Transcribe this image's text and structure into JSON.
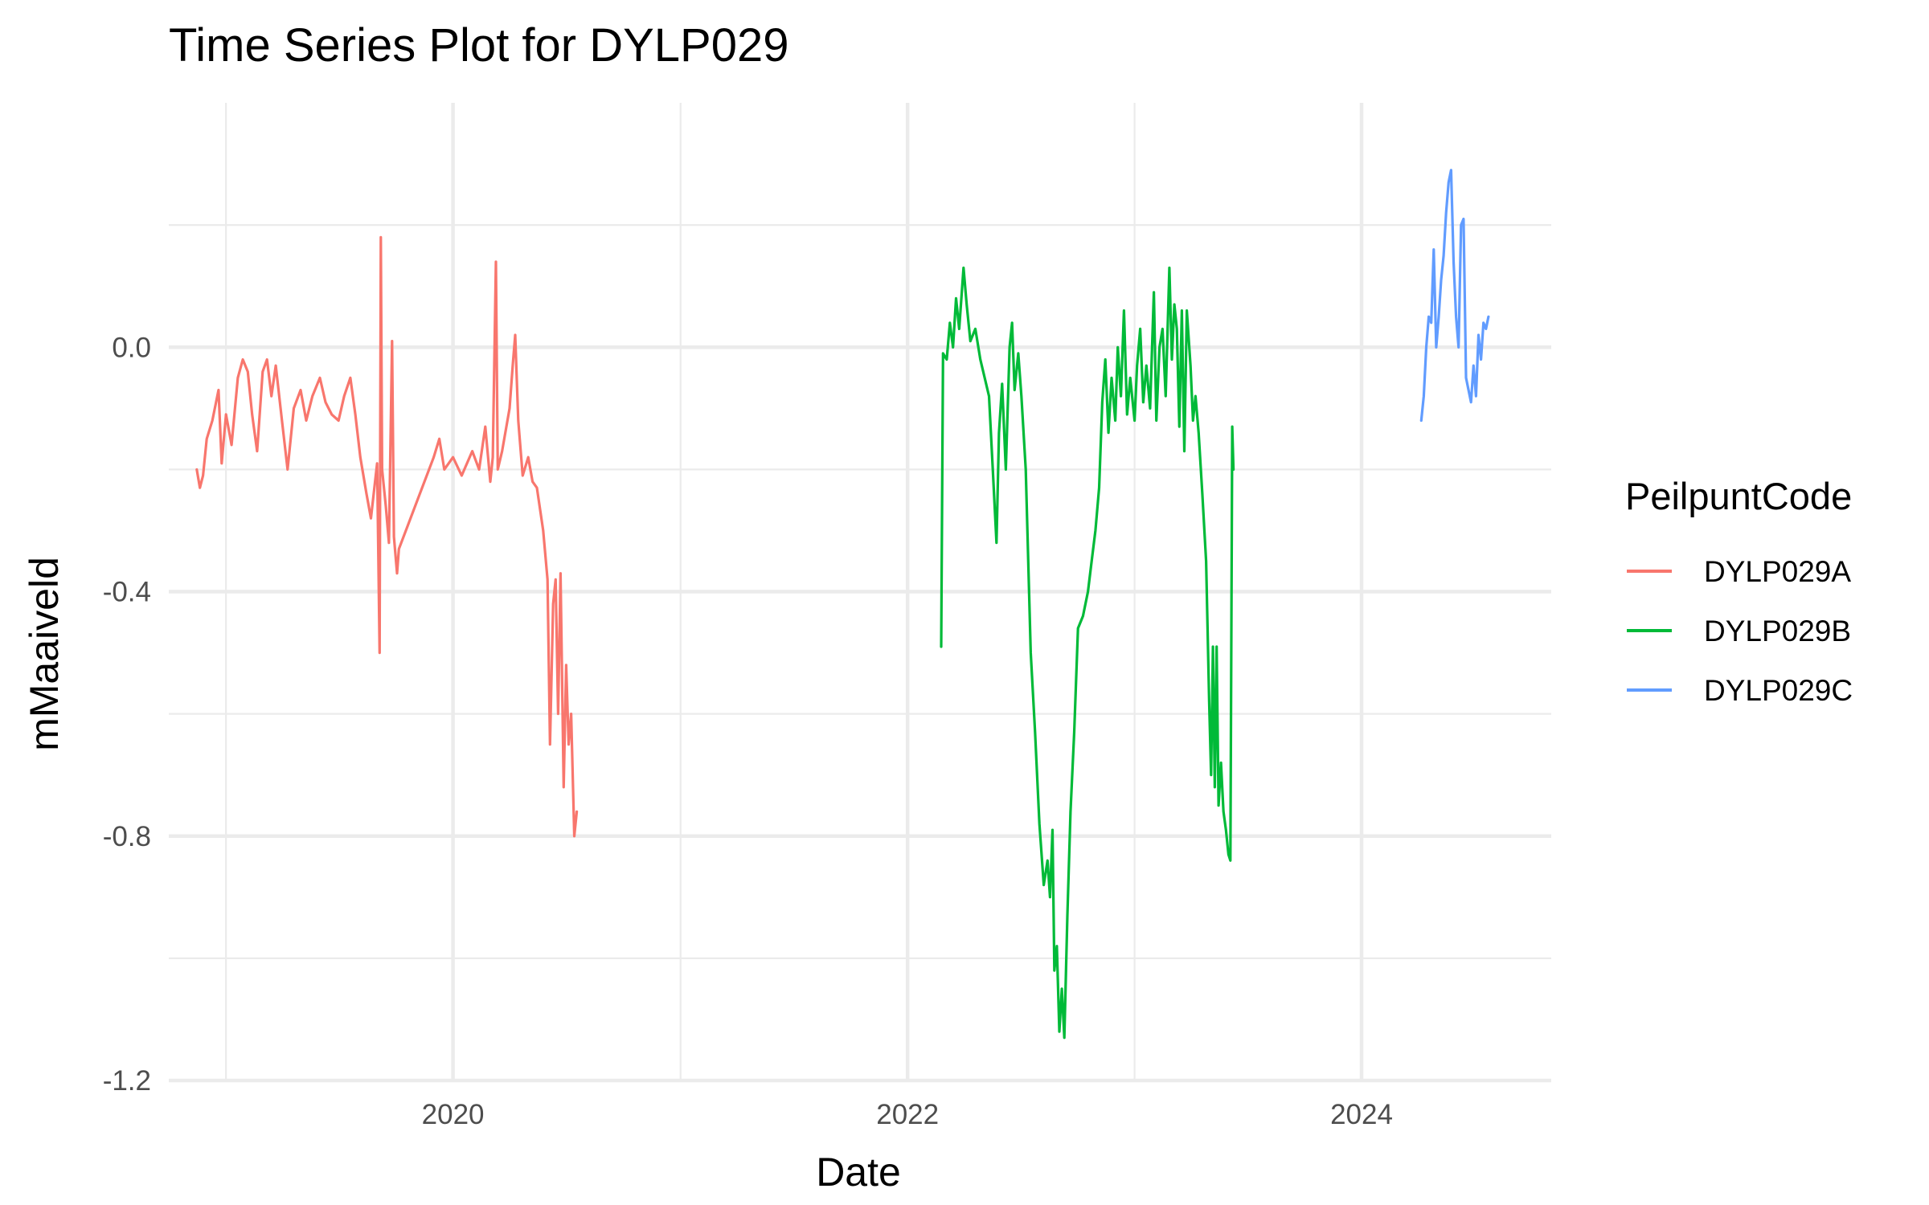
{
  "chart_data": {
    "type": "line",
    "title": "Time Series Plot for DYLP029",
    "xlabel": "Date",
    "ylabel": "mMaaiveld",
    "x_tick_labels": [
      "2020",
      "2022",
      "2024"
    ],
    "y_tick_labels": [
      "0.0",
      "-0.4",
      "-0.8",
      "-1.2"
    ],
    "y_ticks": [
      0.0,
      -0.4,
      -0.8,
      -1.2
    ],
    "xlim": [
      "2018-10-01",
      "2024-11-01"
    ],
    "ylim": [
      -1.2,
      0.4
    ],
    "grid": true,
    "legend": {
      "title": "PeilpuntCode",
      "position": "right"
    },
    "series": [
      {
        "name": "DYLP029A",
        "color": "#F8766D",
        "points": [
          [
            "2018-11-15",
            -0.2
          ],
          [
            "2018-11-20",
            -0.23
          ],
          [
            "2018-11-25",
            -0.21
          ],
          [
            "2018-12-01",
            -0.15
          ],
          [
            "2018-12-10",
            -0.12
          ],
          [
            "2018-12-20",
            -0.07
          ],
          [
            "2018-12-25",
            -0.19
          ],
          [
            "2019-01-01",
            -0.11
          ],
          [
            "2019-01-10",
            -0.16
          ],
          [
            "2019-01-20",
            -0.05
          ],
          [
            "2019-01-28",
            -0.02
          ],
          [
            "2019-02-05",
            -0.04
          ],
          [
            "2019-02-12",
            -0.11
          ],
          [
            "2019-02-20",
            -0.17
          ],
          [
            "2019-03-01",
            -0.04
          ],
          [
            "2019-03-08",
            -0.02
          ],
          [
            "2019-03-15",
            -0.08
          ],
          [
            "2019-03-22",
            -0.03
          ],
          [
            "2019-04-01",
            -0.12
          ],
          [
            "2019-04-10",
            -0.2
          ],
          [
            "2019-04-20",
            -0.1
          ],
          [
            "2019-05-01",
            -0.07
          ],
          [
            "2019-05-10",
            -0.12
          ],
          [
            "2019-05-20",
            -0.08
          ],
          [
            "2019-06-01",
            -0.05
          ],
          [
            "2019-06-10",
            -0.09
          ],
          [
            "2019-06-20",
            -0.11
          ],
          [
            "2019-07-01",
            -0.12
          ],
          [
            "2019-07-10",
            -0.08
          ],
          [
            "2019-07-20",
            -0.05
          ],
          [
            "2019-07-28",
            -0.11
          ],
          [
            "2019-08-05",
            -0.18
          ],
          [
            "2019-08-15",
            -0.24
          ],
          [
            "2019-08-22",
            -0.28
          ],
          [
            "2019-09-01",
            -0.19
          ],
          [
            "2019-09-05",
            -0.5
          ],
          [
            "2019-09-07",
            0.18
          ],
          [
            "2019-09-09",
            -0.2
          ],
          [
            "2019-09-15",
            -0.26
          ],
          [
            "2019-09-20",
            -0.32
          ],
          [
            "2019-09-25",
            0.01
          ],
          [
            "2019-09-28",
            -0.31
          ],
          [
            "2019-10-03",
            -0.37
          ],
          [
            "2019-10-06",
            -0.33
          ],
          [
            "2019-12-01",
            -0.18
          ],
          [
            "2019-12-10",
            -0.15
          ],
          [
            "2019-12-18",
            -0.2
          ],
          [
            "2020-01-01",
            -0.18
          ],
          [
            "2020-01-15",
            -0.21
          ],
          [
            "2020-02-01",
            -0.17
          ],
          [
            "2020-02-12",
            -0.2
          ],
          [
            "2020-02-22",
            -0.13
          ],
          [
            "2020-03-01",
            -0.22
          ],
          [
            "2020-03-05",
            -0.18
          ],
          [
            "2020-03-10",
            0.14
          ],
          [
            "2020-03-13",
            -0.2
          ],
          [
            "2020-03-20",
            -0.17
          ],
          [
            "2020-04-01",
            -0.1
          ],
          [
            "2020-04-06",
            -0.03
          ],
          [
            "2020-04-10",
            0.02
          ],
          [
            "2020-04-15",
            -0.12
          ],
          [
            "2020-04-22",
            -0.21
          ],
          [
            "2020-05-01",
            -0.18
          ],
          [
            "2020-05-08",
            -0.22
          ],
          [
            "2020-05-15",
            -0.23
          ],
          [
            "2020-05-25",
            -0.3
          ],
          [
            "2020-06-01",
            -0.38
          ],
          [
            "2020-06-05",
            -0.65
          ],
          [
            "2020-06-10",
            -0.42
          ],
          [
            "2020-06-14",
            -0.38
          ],
          [
            "2020-06-18",
            -0.6
          ],
          [
            "2020-06-22",
            -0.37
          ],
          [
            "2020-06-27",
            -0.72
          ],
          [
            "2020-07-01",
            -0.52
          ],
          [
            "2020-07-05",
            -0.65
          ],
          [
            "2020-07-09",
            -0.6
          ],
          [
            "2020-07-14",
            -0.8
          ],
          [
            "2020-07-18",
            -0.76
          ]
        ]
      },
      {
        "name": "DYLP029B",
        "color": "#00BA38",
        "points": [
          [
            "2022-02-24",
            -0.49
          ],
          [
            "2022-02-27",
            -0.01
          ],
          [
            "2022-03-05",
            -0.02
          ],
          [
            "2022-03-10",
            0.04
          ],
          [
            "2022-03-15",
            0.0
          ],
          [
            "2022-03-20",
            0.08
          ],
          [
            "2022-03-25",
            0.03
          ],
          [
            "2022-04-01",
            0.13
          ],
          [
            "2022-04-06",
            0.07
          ],
          [
            "2022-04-12",
            0.01
          ],
          [
            "2022-04-20",
            0.03
          ],
          [
            "2022-04-28",
            -0.02
          ],
          [
            "2022-05-05",
            -0.05
          ],
          [
            "2022-05-12",
            -0.08
          ],
          [
            "2022-05-18",
            -0.2
          ],
          [
            "2022-05-24",
            -0.32
          ],
          [
            "2022-05-28",
            -0.14
          ],
          [
            "2022-06-02",
            -0.06
          ],
          [
            "2022-06-08",
            -0.2
          ],
          [
            "2022-06-14",
            0.0
          ],
          [
            "2022-06-18",
            0.04
          ],
          [
            "2022-06-22",
            -0.07
          ],
          [
            "2022-06-28",
            -0.01
          ],
          [
            "2022-07-03",
            -0.08
          ],
          [
            "2022-07-10",
            -0.2
          ],
          [
            "2022-07-18",
            -0.5
          ],
          [
            "2022-07-25",
            -0.63
          ],
          [
            "2022-08-01",
            -0.78
          ],
          [
            "2022-08-08",
            -0.88
          ],
          [
            "2022-08-14",
            -0.84
          ],
          [
            "2022-08-18",
            -0.9
          ],
          [
            "2022-08-22",
            -0.79
          ],
          [
            "2022-08-25",
            -1.02
          ],
          [
            "2022-08-29",
            -0.98
          ],
          [
            "2022-09-02",
            -1.12
          ],
          [
            "2022-09-06",
            -1.05
          ],
          [
            "2022-09-10",
            -1.13
          ],
          [
            "2022-09-15",
            -0.93
          ],
          [
            "2022-09-20",
            -0.76
          ],
          [
            "2022-09-26",
            -0.63
          ],
          [
            "2022-10-02",
            -0.46
          ],
          [
            "2022-10-10",
            -0.44
          ],
          [
            "2022-10-18",
            -0.4
          ],
          [
            "2022-10-24",
            -0.35
          ],
          [
            "2022-10-30",
            -0.3
          ],
          [
            "2022-11-05",
            -0.23
          ],
          [
            "2022-11-10",
            -0.09
          ],
          [
            "2022-11-15",
            -0.02
          ],
          [
            "2022-11-20",
            -0.14
          ],
          [
            "2022-11-25",
            -0.05
          ],
          [
            "2022-12-01",
            -0.12
          ],
          [
            "2022-12-05",
            0.0
          ],
          [
            "2022-12-10",
            -0.08
          ],
          [
            "2022-12-15",
            0.06
          ],
          [
            "2022-12-20",
            -0.11
          ],
          [
            "2022-12-25",
            -0.05
          ],
          [
            "2023-01-01",
            -0.12
          ],
          [
            "2023-01-05",
            -0.03
          ],
          [
            "2023-01-10",
            0.03
          ],
          [
            "2023-01-15",
            -0.09
          ],
          [
            "2023-01-20",
            -0.03
          ],
          [
            "2023-01-26",
            -0.1
          ],
          [
            "2023-02-01",
            0.09
          ],
          [
            "2023-02-05",
            -0.12
          ],
          [
            "2023-02-10",
            0.0
          ],
          [
            "2023-02-15",
            0.03
          ],
          [
            "2023-02-20",
            -0.08
          ],
          [
            "2023-02-26",
            0.13
          ],
          [
            "2023-03-02",
            -0.02
          ],
          [
            "2023-03-06",
            0.07
          ],
          [
            "2023-03-10",
            0.03
          ],
          [
            "2023-03-14",
            -0.13
          ],
          [
            "2023-03-18",
            0.06
          ],
          [
            "2023-03-22",
            -0.17
          ],
          [
            "2023-03-26",
            0.06
          ],
          [
            "2023-04-01",
            -0.03
          ],
          [
            "2023-04-05",
            -0.12
          ],
          [
            "2023-04-09",
            -0.08
          ],
          [
            "2023-04-14",
            -0.14
          ],
          [
            "2023-04-20",
            -0.24
          ],
          [
            "2023-04-26",
            -0.35
          ],
          [
            "2023-05-01",
            -0.58
          ],
          [
            "2023-05-04",
            -0.7
          ],
          [
            "2023-05-07",
            -0.49
          ],
          [
            "2023-05-10",
            -0.72
          ],
          [
            "2023-05-13",
            -0.49
          ],
          [
            "2023-05-16",
            -0.75
          ],
          [
            "2023-05-20",
            -0.68
          ],
          [
            "2023-05-24",
            -0.76
          ],
          [
            "2023-05-28",
            -0.79
          ],
          [
            "2023-06-01",
            -0.83
          ],
          [
            "2023-06-04",
            -0.84
          ],
          [
            "2023-06-07",
            -0.13
          ],
          [
            "2023-06-09",
            -0.2
          ]
        ]
      },
      {
        "name": "DYLP029C",
        "color": "#619CFF",
        "points": [
          [
            "2024-04-06",
            -0.12
          ],
          [
            "2024-04-10",
            -0.08
          ],
          [
            "2024-04-14",
            0.0
          ],
          [
            "2024-04-18",
            0.05
          ],
          [
            "2024-04-22",
            0.04
          ],
          [
            "2024-04-26",
            0.16
          ],
          [
            "2024-04-30",
            0.0
          ],
          [
            "2024-05-04",
            0.05
          ],
          [
            "2024-05-08",
            0.11
          ],
          [
            "2024-05-12",
            0.15
          ],
          [
            "2024-05-16",
            0.22
          ],
          [
            "2024-05-20",
            0.27
          ],
          [
            "2024-05-24",
            0.29
          ],
          [
            "2024-05-28",
            0.14
          ],
          [
            "2024-06-01",
            0.05
          ],
          [
            "2024-06-05",
            0.0
          ],
          [
            "2024-06-09",
            0.2
          ],
          [
            "2024-06-13",
            0.21
          ],
          [
            "2024-06-17",
            -0.05
          ],
          [
            "2024-06-21",
            -0.07
          ],
          [
            "2024-06-25",
            -0.09
          ],
          [
            "2024-06-29",
            -0.03
          ],
          [
            "2024-07-03",
            -0.08
          ],
          [
            "2024-07-07",
            0.02
          ],
          [
            "2024-07-11",
            -0.02
          ],
          [
            "2024-07-15",
            0.04
          ],
          [
            "2024-07-19",
            0.03
          ],
          [
            "2024-07-23",
            0.05
          ]
        ]
      }
    ]
  }
}
